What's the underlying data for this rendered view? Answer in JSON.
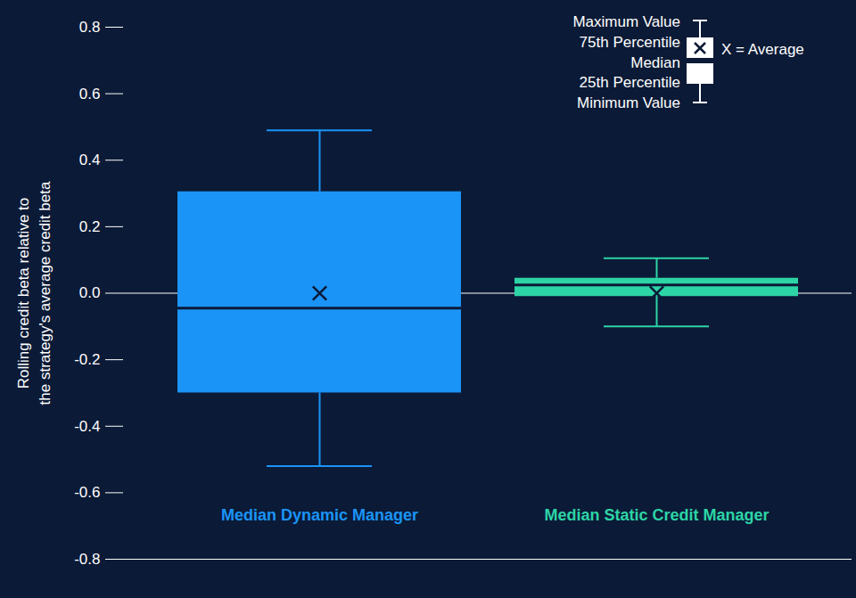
{
  "chart_data": {
    "type": "box",
    "categories": [
      "Median Dynamic Manager",
      "Median Static Credit Manager"
    ],
    "colors": [
      "#1a94f7",
      "#2dd4a6"
    ],
    "min": [
      -0.52,
      -0.1
    ],
    "q1": [
      -0.3,
      -0.01
    ],
    "median": [
      -0.045,
      0.025
    ],
    "q3": [
      0.305,
      0.045
    ],
    "max": [
      0.49,
      0.105
    ],
    "average": [
      0.0,
      0.0
    ],
    "ylim": [
      -0.8,
      0.8
    ],
    "yticks": [
      -0.8,
      -0.6,
      -0.4,
      -0.2,
      {
        "value": 0,
        "label": "0.0"
      },
      0.2,
      0.4,
      0.6,
      0.8
    ],
    "y_label": "Rolling credit beta relative to\nthe strategy's average credit beta",
    "legend": "top-right",
    "legend_labels": {
      "max": "Maximum Value",
      "q3": "75th Percentile",
      "median": "Median",
      "q1": "25th Percentile",
      "min": "Minimum Value",
      "average": "X = Average"
    }
  }
}
